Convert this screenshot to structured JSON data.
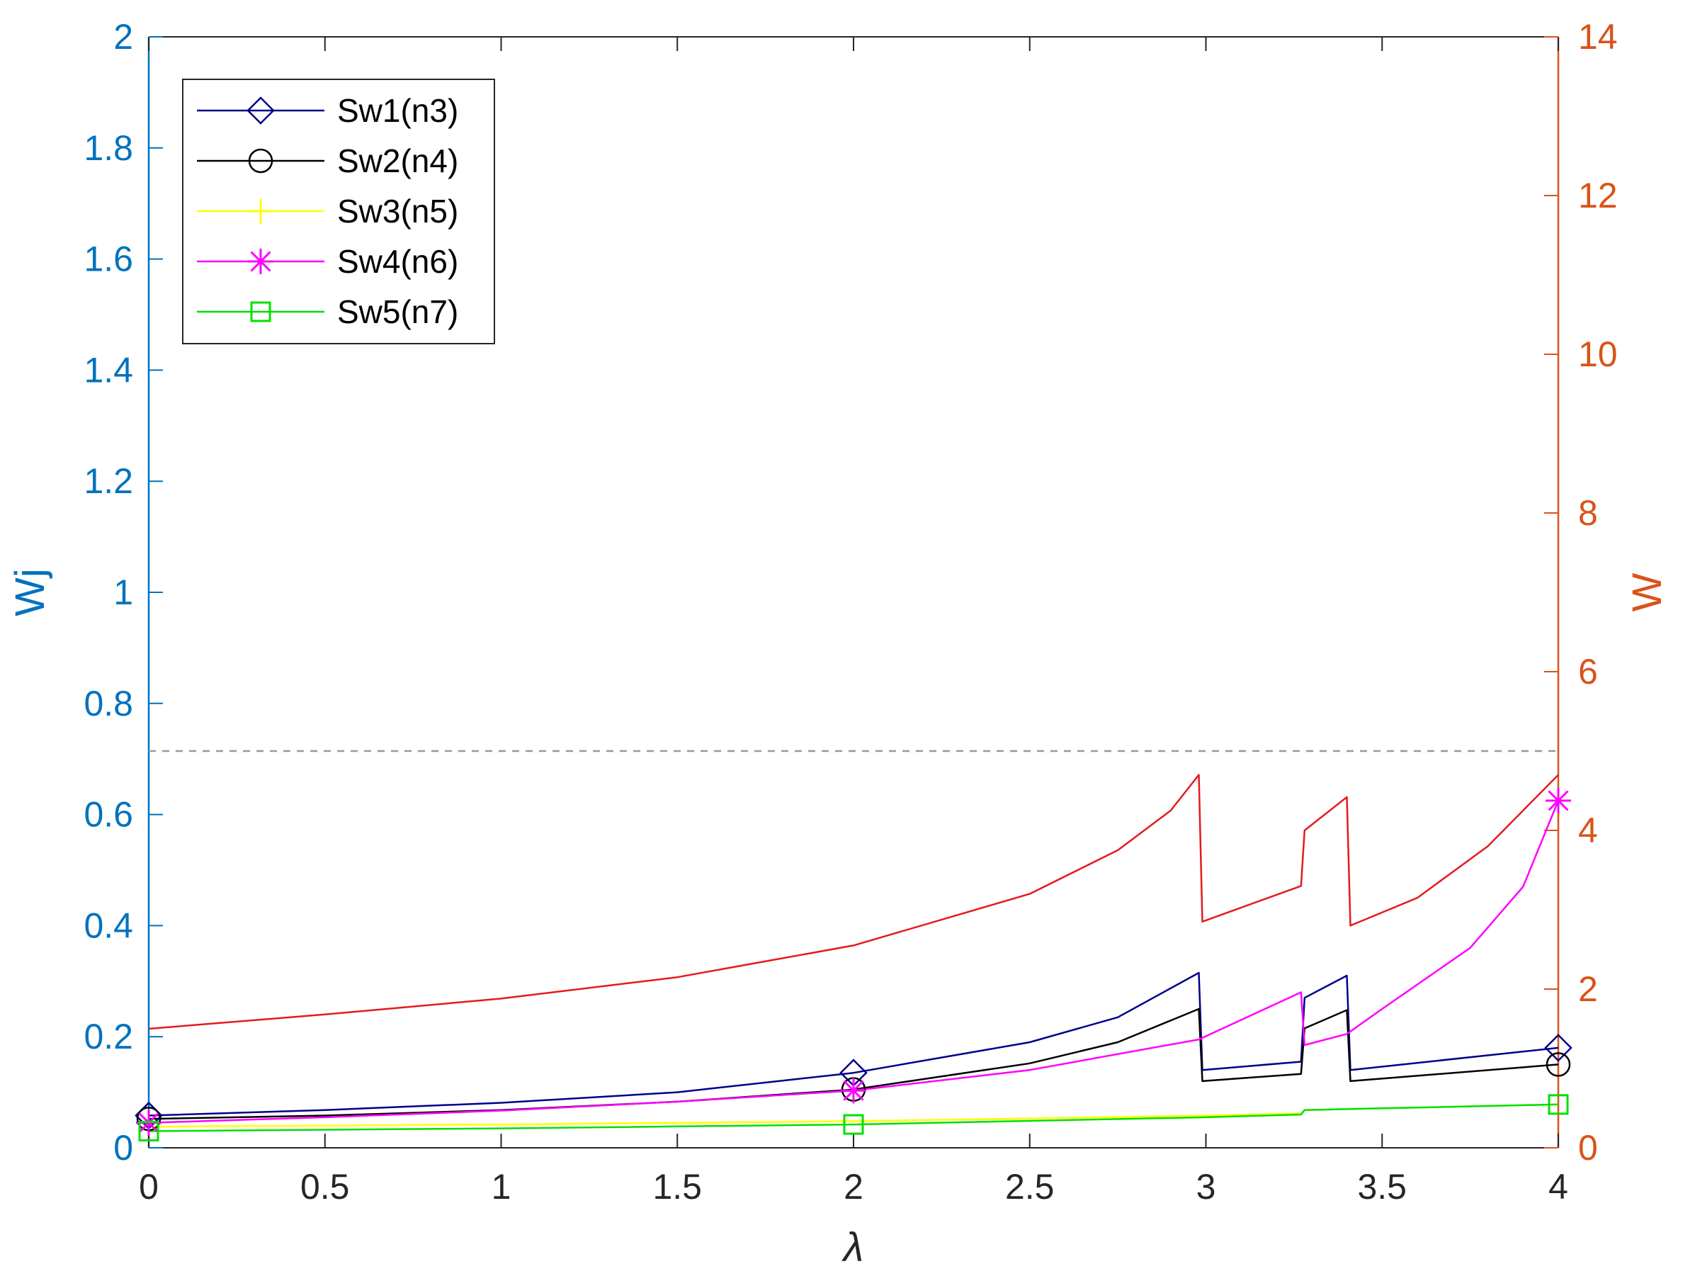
{
  "chart_data": {
    "type": "line",
    "xlabel": "λ",
    "ylabel_left": "Wj",
    "ylabel_right": "W",
    "xlim": [
      0,
      4
    ],
    "ylim_left": [
      0,
      2
    ],
    "ylim_right": [
      0,
      14
    ],
    "x_ticks": [
      "0",
      "0.5",
      "1",
      "1.5",
      "2",
      "2.5",
      "3",
      "3.5",
      "4"
    ],
    "y_ticks_left": [
      "0",
      "0.2",
      "0.4",
      "0.6",
      "0.8",
      "1",
      "1.2",
      "1.4",
      "1.6",
      "1.8",
      "2"
    ],
    "y_ticks_right": [
      "0",
      "2",
      "4",
      "6",
      "8",
      "10",
      "12",
      "14"
    ],
    "grid": false,
    "legend_position": "top-left",
    "reference_line": {
      "axis": "right",
      "y": 5,
      "style": "dashed",
      "color": "#999999"
    },
    "colors": {
      "left_axis": "#0072BD",
      "right_axis": "#D95319",
      "total": "#E41A1C"
    },
    "series": [
      {
        "name": "Sw1(n3)",
        "color": "#00008B",
        "marker": "diamond",
        "axis": "left",
        "x": [
          0,
          0.5,
          1,
          1.5,
          2,
          2.5,
          2.75,
          2.98,
          2.99,
          3.27,
          3.28,
          3.4,
          3.41,
          4
        ],
        "y": [
          0.058,
          0.068,
          0.081,
          0.1,
          0.135,
          0.19,
          0.235,
          0.315,
          0.14,
          0.155,
          0.27,
          0.31,
          0.14,
          0.18
        ],
        "markers_x": [
          0,
          2,
          4
        ]
      },
      {
        "name": "Sw2(n4)",
        "color": "#000000",
        "marker": "circle",
        "axis": "left",
        "x": [
          0,
          0.5,
          1,
          1.5,
          2,
          2.5,
          2.75,
          2.98,
          2.99,
          3.27,
          3.28,
          3.4,
          3.41,
          4
        ],
        "y": [
          0.052,
          0.058,
          0.068,
          0.083,
          0.105,
          0.152,
          0.19,
          0.25,
          0.12,
          0.133,
          0.215,
          0.248,
          0.12,
          0.15
        ],
        "markers_x": [
          0,
          2,
          4
        ]
      },
      {
        "name": "Sw3(n5)",
        "color": "#FFFF00",
        "marker": "plus",
        "axis": "left",
        "x": [
          0,
          1,
          2,
          3,
          3.27,
          3.28,
          4
        ],
        "y": [
          0.038,
          0.042,
          0.048,
          0.058,
          0.062,
          0.068,
          0.078
        ],
        "markers_x": []
      },
      {
        "name": "Sw4(n6)",
        "color": "#FF00FF",
        "marker": "asterisk",
        "axis": "left",
        "x": [
          0,
          0.5,
          1,
          1.5,
          2,
          2.5,
          2.98,
          3.27,
          3.28,
          3.4,
          3.5,
          3.75,
          3.9,
          4
        ],
        "y": [
          0.045,
          0.055,
          0.067,
          0.083,
          0.103,
          0.14,
          0.195,
          0.28,
          0.185,
          0.205,
          0.25,
          0.36,
          0.47,
          0.625
        ],
        "markers_x": [
          0,
          2,
          4
        ]
      },
      {
        "name": "Sw5(n7)",
        "color": "#00E000",
        "marker": "square",
        "axis": "left",
        "x": [
          0,
          1,
          2,
          3,
          3.27,
          3.28,
          4
        ],
        "y": [
          0.03,
          0.035,
          0.042,
          0.055,
          0.06,
          0.068,
          0.078
        ],
        "markers_x": [
          0,
          2,
          4
        ]
      },
      {
        "name": "",
        "color": "#E41A1C",
        "marker": "none",
        "axis": "right",
        "x": [
          0,
          0.5,
          1,
          1.5,
          2,
          2.5,
          2.75,
          2.9,
          2.98,
          2.99,
          3.27,
          3.28,
          3.4,
          3.41,
          3.6,
          3.8,
          4
        ],
        "y": [
          1.5,
          1.68,
          1.88,
          2.15,
          2.55,
          3.2,
          3.75,
          4.25,
          4.7,
          2.85,
          3.3,
          4.0,
          4.42,
          2.8,
          3.15,
          3.8,
          4.7
        ],
        "markers_x": []
      }
    ]
  }
}
